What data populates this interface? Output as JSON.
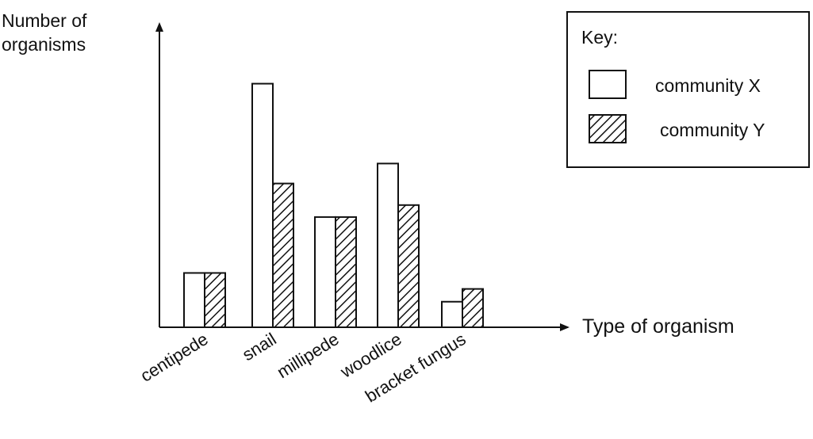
{
  "chart_data": {
    "type": "bar",
    "ylabel_lines": [
      "Number of",
      "organisms"
    ],
    "xlabel": "Type of organism",
    "categories": [
      "centipede",
      "snail",
      "millipede",
      "woodlice",
      "bracket fungus"
    ],
    "series": [
      {
        "name": "community X",
        "values": [
          68,
          305,
          138,
          205,
          32
        ]
      },
      {
        "name": "community Y",
        "values": [
          68,
          180,
          138,
          153,
          48
        ]
      }
    ],
    "ylim": [
      0,
      380
    ],
    "y_ticks_shown": false,
    "grid": false,
    "legend": {
      "title": "Key:",
      "placement": "top-right",
      "entries": [
        "community X",
        "community Y"
      ]
    },
    "colors": {
      "ink": "#111111",
      "bar_fill": "#ffffff"
    },
    "bar_styles": [
      "plain",
      "hatched"
    ]
  }
}
